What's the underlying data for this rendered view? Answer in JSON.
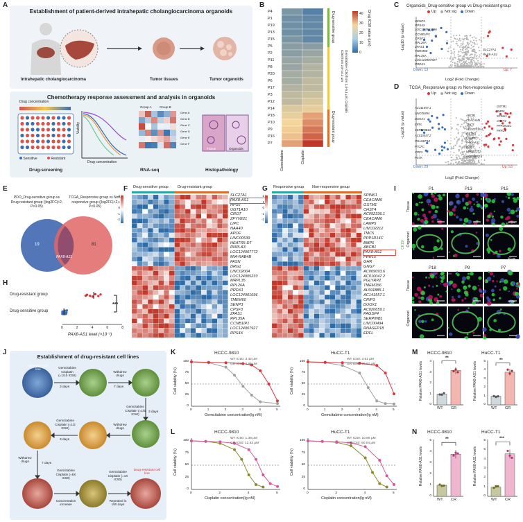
{
  "letters": {
    "A": "A",
    "B": "B",
    "C": "C",
    "D": "D",
    "E": "E",
    "F": "F",
    "G": "G",
    "H": "H",
    "I": "I",
    "J": "J",
    "K": "K",
    "L": "L",
    "M": "M",
    "N": "N"
  },
  "panelA": {
    "title_top": "Establishment of patient-derived intrahepatic cholangiocarcinoma organoids",
    "labels": [
      "Intrahepatic cholangiocarcinoma",
      "Tumor tissues",
      "Tumor organoids"
    ],
    "title_bottom": "Chemotherapy response assessment and analysis in organoids",
    "drug_conc_label": "Drug concentration",
    "viability": "Viability",
    "drug_conc_axis": "Drug concentration",
    "sensitive": "Sensitive",
    "resistant": "Resistant",
    "groupA": "Group A",
    "groupB": "Group B",
    "genes": [
      "Gene A",
      "Gene B",
      "Gene C",
      "Gene D",
      "Gene E",
      "Gene F"
    ],
    "tissue": "Tissue",
    "organoids": "Organoids",
    "sub_labels": [
      "Drug-screening",
      "RNA-seq",
      "Histopathology"
    ]
  },
  "panelB": {
    "rows": [
      "P4",
      "P1",
      "P19",
      "P13",
      "P15",
      "P5",
      "P2",
      "P11",
      "P8",
      "P20",
      "P6",
      "P17",
      "P3",
      "P12",
      "P14",
      "P18",
      "P10",
      "P9",
      "P16",
      "P7"
    ],
    "cols": [
      "Gemcitabine",
      "Cisplatin"
    ],
    "gem": [
      6,
      5,
      5,
      5,
      6,
      7,
      7,
      8,
      8,
      9,
      9,
      10,
      11,
      11,
      13,
      14,
      15,
      16,
      17,
      20
    ],
    "cis": [
      3,
      4,
      4,
      4,
      4,
      7,
      8,
      9,
      10,
      10,
      11,
      11,
      12,
      13,
      14,
      20,
      22,
      24,
      26,
      30
    ],
    "scale_title": "Drug IC50 value (μm)",
    "scale_ticks": [
      "40",
      "30",
      "20",
      "10",
      "0"
    ],
    "groups": [
      "Drug-sensitive group",
      "Gemcitabine IC50 from 1.4-5.1 μm; Cisplatin IC50 from 2.8-14.2 μm",
      "Drug-resistant group"
    ]
  },
  "panelC": {
    "title": "Organoids_Drug-sensitive group vs Drug-resistant group",
    "legend": [
      "Up",
      "Not sig",
      "Down"
    ],
    "genes_left": [
      "SENP3",
      "RPS4X",
      "LOC124901696",
      "CCNB1IP1",
      "CPSF3",
      "RPL26A",
      "ZFAS1",
      "TMEM60",
      "RPL35A",
      "LOC124907927",
      "PRDX1"
    ],
    "genes_right": [
      "SLC27A1",
      "PAX8-AS1"
    ],
    "down_label": "Down: 13",
    "up_label": "Up: 7",
    "xlabel": "Log2 (Fold Change)",
    "ylabel": "-Log10 (p value)",
    "xticks": [
      "-4",
      "-2",
      "0",
      "2",
      "4"
    ],
    "yticks": [
      "0",
      "2",
      "4",
      "6"
    ]
  },
  "panelD": {
    "title": "TCGA_Responsive group vs Non-responsive group",
    "legend": [
      "Up",
      "Not sig",
      "Down"
    ],
    "genes_left": [
      "AC141557.1",
      "LINC00494",
      "DUOX1",
      "ERFL",
      "SERPINB13",
      "AC010047.2",
      "RNASEP18",
      "PTCFC",
      "CRP3",
      "PSTK"
    ],
    "genes_mid": [
      "ABCB1",
      "CEACAM5",
      "TMC5",
      "ACG02316.1",
      "GSTM1",
      "LAMP5",
      "PAX8-AS1",
      "GNG7",
      "LINC02212",
      "AC009093.6"
    ],
    "genes_right": [
      "GSTM1",
      "BMP6",
      "SPINK1",
      "CHST4",
      "PPP1R14C",
      "PRR15"
    ],
    "down_label": "Down: 29",
    "up_label": "Up: 53",
    "xlabel": "Log2 (Fold Change)",
    "ylabel": "-Log10 (p value)",
    "xticks": [
      "-2.5",
      "0",
      "2.5",
      "5.0"
    ],
    "yticks": [
      "0",
      "2",
      "4",
      "6",
      "8"
    ]
  },
  "panelE": {
    "left_title": "PDO_Drug-sensitive group vs Drug-resistant group (|log2FC|>2, P<0.05)",
    "right_title": "TCGA_Responsive group vs Non-responsive group (|log2FC|>2, P<0.05)",
    "left_count": "19",
    "center_label": "PAX8-AS1",
    "right_count": "81"
  },
  "panelF": {
    "groups": [
      "Drug-sensitive group",
      "Drug-resistant group"
    ],
    "genes": [
      "SLC27A1",
      "PAX8-AS1",
      "HPS6",
      "UGT1A10",
      "CROT",
      "ZFYVE21",
      "LIPC",
      "NAA40",
      "APOF",
      "LINC00539",
      "HEATR5-DT",
      "RNPLA3",
      "LOC124907772",
      "MIA-RAB4B",
      "FASN",
      "DRG1",
      "LINC02004",
      "LOC124905233",
      "MRPL35",
      "RPL26A",
      "PRDX1",
      "LOC124901696",
      "TMEM60",
      "SENP3",
      "CPSF3",
      "ZFAS1",
      "RPL35A",
      "CCNB1IP1",
      "LOC124907927",
      "RPS4X"
    ],
    "scale": [
      "2",
      "1",
      "0",
      "-1",
      "-2"
    ]
  },
  "panelG": {
    "groups": [
      "Responsive group",
      "Non-responsive group"
    ],
    "genes": [
      "SPINK1",
      "CEACAM5",
      "GSTM1",
      "CHST4",
      "AC092336.1",
      "CEACAM6",
      "LAMP5",
      "LINC02212",
      "TMC5",
      "PPP1R14C",
      "BMP6",
      "ABCB1",
      "PAX8-AS1",
      "PRR15",
      "GHR",
      "GNG7",
      "AC009093.6",
      "AC010047.2",
      "PGLYRP2",
      "TMEM156",
      "AL591885.1",
      "AC141557.1",
      "CRIP3",
      "DUOX1",
      "AC020659.1",
      "PAGSP4",
      "SERPINB1",
      "LINC00494",
      "RNASEP18",
      "ERFL"
    ],
    "scale": [
      "2",
      "1",
      "0",
      "-1",
      "-2"
    ]
  },
  "panelH": {
    "rows": [
      "Drug-resistant group",
      "Drug-sensitive group"
    ],
    "xlabel": "PAX8-AS1 level (×10⁻²)",
    "xticks": [
      "0",
      "2",
      "4",
      "6",
      "8"
    ],
    "sig": "***",
    "resistant_mean": 4.2,
    "sensitive_mean": 0.2
  },
  "panelI": {
    "top_cols": [
      "P1",
      "P13",
      "P15"
    ],
    "bottom_cols": [
      "P18",
      "P9",
      "P7"
    ],
    "rows": [
      "Tissue",
      "Organoid"
    ],
    "side_label": "CK19/",
    "scale": "50 μm"
  },
  "panelJ": {
    "title": "Establishment of drug-resistant cell lines",
    "wild": "Wild-type cell line",
    "steps": [
      "Gemcitabine Cisplatin (=1/10 IC50)",
      "3 days",
      "Withdrew drugs",
      "7 days",
      "Gemcitabine Cisplatin (=1/5 IC50)",
      "3 days",
      "Withdrew drugs",
      "Gemcitabine Cisplatin (=1/2 IC50)",
      "3 days",
      "Withdrew drugs",
      "7 days",
      "Gemcitabine Cisplatin (=5X IC50)",
      "Concentration increase",
      "Gemcitabine Cisplatin (=1X IC50)",
      "Repeated in 180 days",
      "Drug-resistant cell line"
    ]
  },
  "panelK": [
    {
      "title": "HCCC-9810",
      "wt": "WT IC50: 3.32 μM",
      "gr": "GR IC50: 4.98 μM",
      "xlabel": "Gemcitabine concentration(lg nM)",
      "ylabel": "Cell viability (%)",
      "xticks": [
        "0",
        "1",
        "2",
        "3",
        "4",
        "5"
      ],
      "yticks": [
        "0",
        "25",
        "50",
        "75",
        "100"
      ],
      "wt_pts": [
        [
          0,
          100
        ],
        [
          1,
          98
        ],
        [
          2,
          88
        ],
        [
          2.5,
          70
        ],
        [
          3,
          45
        ],
        [
          3.5,
          25
        ],
        [
          4,
          10
        ],
        [
          5,
          6
        ]
      ],
      "gr_pts": [
        [
          0,
          100
        ],
        [
          1,
          99
        ],
        [
          2,
          98
        ],
        [
          3,
          96
        ],
        [
          3.5,
          93
        ],
        [
          4,
          80
        ],
        [
          4.5,
          50
        ],
        [
          5,
          12
        ]
      ]
    },
    {
      "title": "HuCC-T1",
      "wt": "WT IC50: 3.51 μM",
      "gr": "GR IC50: 29.62 μM",
      "xlabel": "Gemcitabine concentration(lg nM)",
      "ylabel": "Cell viability (%)",
      "xticks": [
        "0",
        "1",
        "2",
        "3",
        "4",
        "5"
      ],
      "yticks": [
        "0",
        "25",
        "50",
        "75",
        "100"
      ],
      "wt_pts": [
        [
          0,
          100
        ],
        [
          1,
          98
        ],
        [
          2,
          92
        ],
        [
          3,
          75
        ],
        [
          3.5,
          42
        ],
        [
          4,
          12
        ],
        [
          4.5,
          6
        ],
        [
          5,
          5
        ]
      ],
      "gr_pts": [
        [
          0,
          100
        ],
        [
          1,
          99
        ],
        [
          2,
          98
        ],
        [
          3,
          97
        ],
        [
          4,
          92
        ],
        [
          4.5,
          75
        ],
        [
          5,
          28
        ]
      ]
    }
  ],
  "panelL": [
    {
      "title": "HCCC-9810",
      "wt": "WT IC50: 1.38 μM",
      "gr": "CR IC50: 12.63 μM",
      "xlabel": "Cisplatin concentration(lg nM)",
      "ylabel": "Cell viability (%)",
      "xticks": [
        "0",
        "2",
        "4",
        "6"
      ],
      "yticks": [
        "0",
        "25",
        "50",
        "75",
        "100"
      ],
      "wt_pts": [
        [
          0,
          100
        ],
        [
          1,
          99
        ],
        [
          2,
          95
        ],
        [
          3,
          82
        ],
        [
          3.5,
          62
        ],
        [
          4,
          30
        ],
        [
          4.5,
          10
        ],
        [
          5,
          5
        ]
      ],
      "gr_pts": [
        [
          0,
          100
        ],
        [
          1,
          99
        ],
        [
          2,
          98
        ],
        [
          3,
          95
        ],
        [
          4,
          82
        ],
        [
          4.5,
          62
        ],
        [
          5,
          30
        ],
        [
          5.5,
          12
        ],
        [
          6,
          6
        ]
      ]
    },
    {
      "title": "HuCC-T1",
      "wt": "WT IC50: 10.85 μM",
      "gr": "CR IC50: 90.04 μM",
      "xlabel": "Cisplatin concentration(lg nM)",
      "ylabel": "Cell viability (%)",
      "xticks": [
        "0",
        "2",
        "4",
        "6"
      ],
      "yticks": [
        "0",
        "25",
        "50",
        "75",
        "100"
      ],
      "wt_pts": [
        [
          0,
          100
        ],
        [
          1,
          99
        ],
        [
          2,
          97
        ],
        [
          3,
          90
        ],
        [
          4,
          65
        ],
        [
          4.5,
          35
        ],
        [
          5,
          12
        ],
        [
          5.5,
          5
        ]
      ],
      "gr_pts": [
        [
          0,
          100
        ],
        [
          1,
          99
        ],
        [
          2,
          98
        ],
        [
          3,
          96
        ],
        [
          4,
          88
        ],
        [
          5,
          60
        ],
        [
          5.5,
          28
        ],
        [
          6,
          10
        ]
      ]
    }
  ],
  "panelM": [
    {
      "title": "HCCC-9810",
      "sig": "**",
      "ylabel": "Relative PAX8-AS1 levels",
      "cats": [
        "WT",
        "GR"
      ],
      "vals": [
        1.0,
        3.2
      ],
      "yticks": [
        "0",
        "1",
        "2",
        "3",
        "4"
      ],
      "ymax": 4
    },
    {
      "title": "HuCC-T1",
      "sig": "**",
      "ylabel": "Relative PAX8-AS1 levels",
      "cats": [
        "WT",
        "GR"
      ],
      "vals": [
        1.0,
        3.8
      ],
      "yticks": [
        "0",
        "1",
        "2",
        "3",
        "4",
        "5"
      ],
      "ymax": 5
    }
  ],
  "panelN": [
    {
      "title": "HCCC-9810",
      "sig": "**",
      "ylabel": "Relative PAX8-AS1 levels",
      "cats": [
        "WT",
        "CR"
      ],
      "vals": [
        1.0,
        3.8
      ],
      "yticks": [
        "0",
        "1",
        "2",
        "3",
        "4",
        "5"
      ],
      "ymax": 5
    },
    {
      "title": "HuCC-T1",
      "sig": "***",
      "ylabel": "Relative PAX8-AS1 levels",
      "cats": [
        "WT",
        "CR"
      ],
      "vals": [
        1.0,
        4.6
      ],
      "yticks": [
        "0",
        "1",
        "2",
        "3",
        "4",
        "5",
        "6"
      ],
      "ymax": 6
    }
  ],
  "colors": {
    "red": "#d9363e",
    "blue": "#3b6fb5",
    "gray": "#a0a0a0",
    "olive": "#8a8a2a",
    "pink": "#d4589a",
    "green": "#7ab648",
    "orange": "#e8a23a",
    "hm_red": "#c0392b",
    "hm_blue": "#2e6ca8"
  },
  "chart_data": [
    {
      "type": "heatmap",
      "title": "Drug IC50 value (μm)",
      "categories": [
        "P4",
        "P1",
        "P19",
        "P13",
        "P15",
        "P5",
        "P2",
        "P11",
        "P8",
        "P20",
        "P6",
        "P17",
        "P3",
        "P12",
        "P14",
        "P18",
        "P10",
        "P9",
        "P16",
        "P7"
      ],
      "series": [
        {
          "name": "Gemcitabine",
          "values": [
            6,
            5,
            5,
            5,
            6,
            7,
            7,
            8,
            8,
            9,
            9,
            10,
            11,
            11,
            13,
            14,
            15,
            16,
            17,
            20
          ]
        },
        {
          "name": "Cisplatin",
          "values": [
            3,
            4,
            4,
            4,
            4,
            7,
            8,
            9,
            10,
            10,
            11,
            11,
            12,
            13,
            14,
            20,
            22,
            24,
            26,
            30
          ]
        }
      ]
    },
    {
      "type": "line",
      "title": "HCCC-9810 Gemcitabine",
      "xlabel": "Gemcitabine concentration(lg nM)",
      "ylabel": "Cell viability (%)",
      "ylim": [
        0,
        100
      ]
    },
    {
      "type": "bar",
      "title": "HCCC-9810 GR",
      "categories": [
        "WT",
        "GR"
      ],
      "values": [
        1.0,
        3.2
      ]
    }
  ]
}
